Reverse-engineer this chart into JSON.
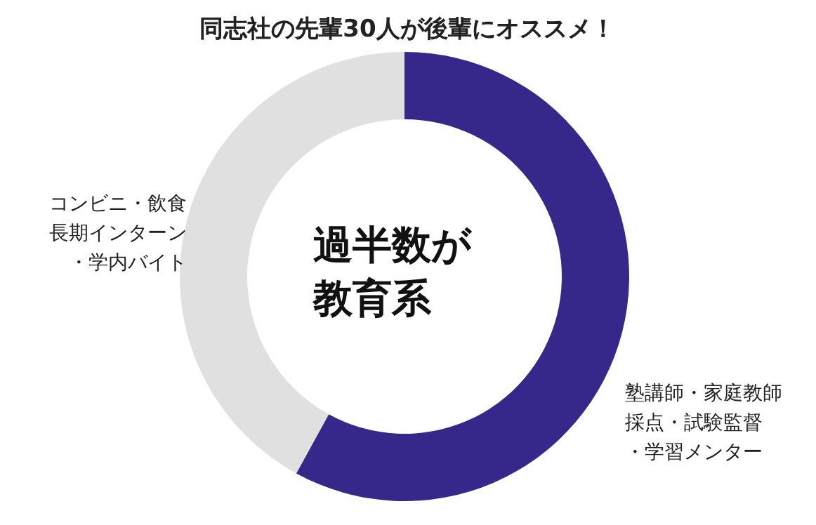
{
  "chart_data": {
    "type": "donut",
    "title": "同志社の先輩30人が後輩にオススメ！",
    "categories": [
      "塾講師・家庭教師採点・試験監督・学習メンター",
      "コンビニ・飲食長期インターン・学内バイト"
    ],
    "values": [
      58,
      42
    ],
    "colors": [
      "#35288a",
      "#e0e0e0"
    ],
    "annotations": [
      "過半数が教育系"
    ],
    "legend": false
  }
}
